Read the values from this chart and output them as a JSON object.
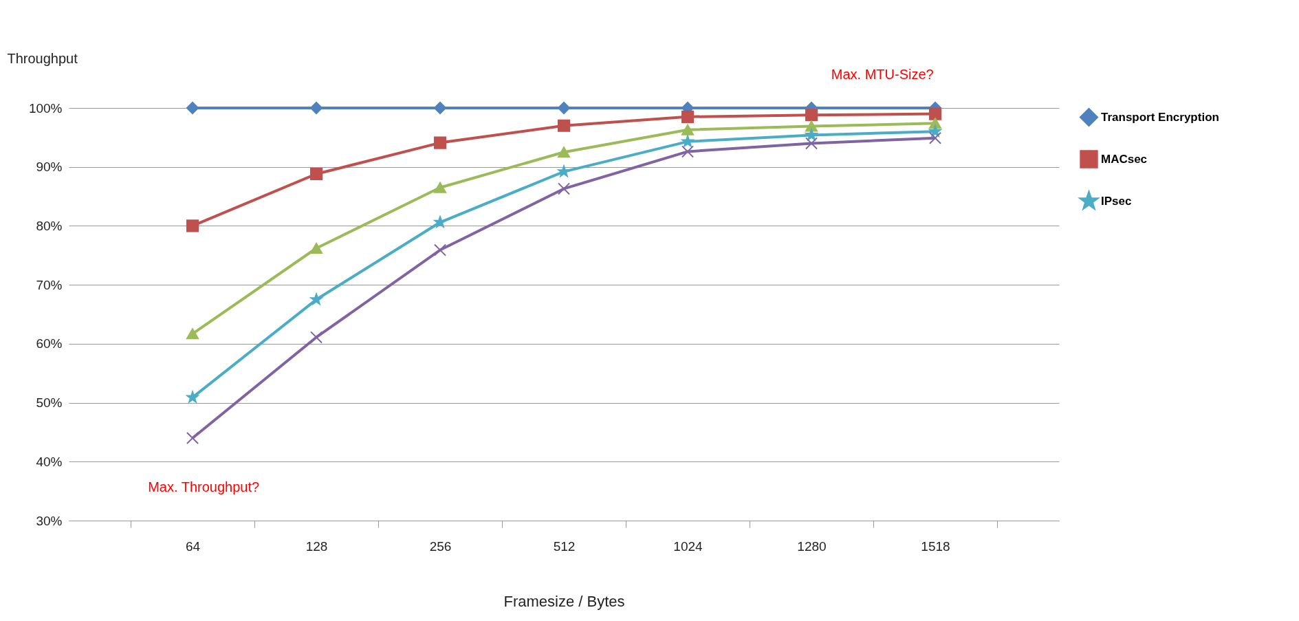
{
  "chart_data": {
    "type": "line",
    "xlabel": "Framesize / Bytes",
    "ylabel": "Throughput",
    "categories": [
      "64",
      "128",
      "256",
      "512",
      "1024",
      "1280",
      "1518"
    ],
    "series": [
      {
        "name": "Transport Encryption",
        "color": "#4f81bd",
        "marker": "diamond",
        "values": [
          100,
          100,
          100,
          100,
          100,
          100,
          100
        ]
      },
      {
        "name": "MACsec",
        "color": "#c0504d",
        "marker": "square",
        "values": [
          80,
          88.8,
          94.1,
          97,
          98.5,
          98.8,
          99
        ]
      },
      {
        "color": "#9bbb59",
        "marker": "triangle",
        "values": [
          61.7,
          76.2,
          86.5,
          92.5,
          96.3,
          96.9,
          97.4
        ]
      },
      {
        "name": "IPsec",
        "color": "#4bacc6",
        "marker": "star",
        "values": [
          50.9,
          67.5,
          80.6,
          89.2,
          94.3,
          95.4,
          96
        ]
      },
      {
        "color": "#8064a2",
        "marker": "cross",
        "values": [
          44,
          61.1,
          75.9,
          86.3,
          92.6,
          94,
          94.9
        ]
      }
    ],
    "ylim": [
      30,
      100
    ],
    "yticks": [
      {
        "value": 30,
        "label": "30%"
      },
      {
        "value": 40,
        "label": "40%"
      },
      {
        "value": 50,
        "label": "50%"
      },
      {
        "value": 60,
        "label": "60%"
      },
      {
        "value": 70,
        "label": "70%"
      },
      {
        "value": 80,
        "label": "80%"
      },
      {
        "value": 90,
        "label": "90%"
      },
      {
        "value": 100,
        "label": "100%"
      }
    ],
    "grid": "y",
    "legend": "right",
    "line_style": "solid",
    "annotations": [
      "Max. MTU-Size?",
      "Max. Throughput?"
    ]
  }
}
